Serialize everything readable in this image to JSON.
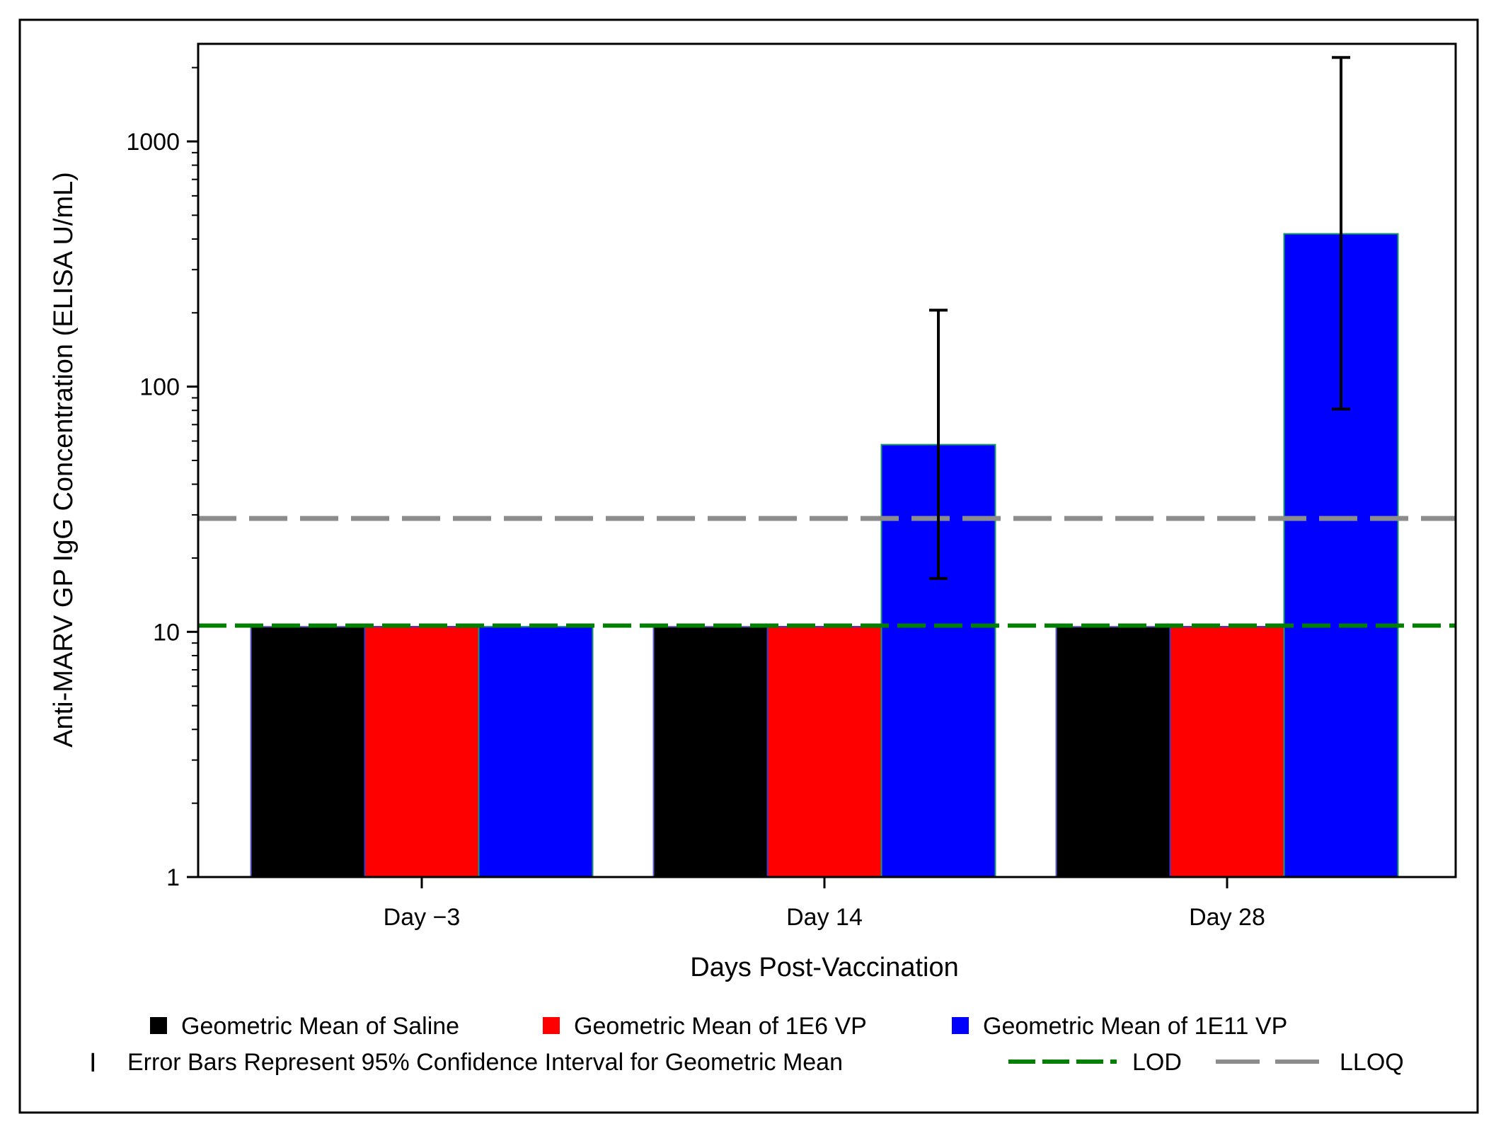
{
  "chart_data": {
    "type": "bar",
    "title": "",
    "xlabel": "Days Post-Vaccination",
    "ylabel": "Anti-MARV GP IgG Concentration (ELISA U/mL)",
    "yscale": "log",
    "ylim": [
      1,
      2500
    ],
    "yticks": [
      1,
      10,
      100,
      1000
    ],
    "ytick_labels": [
      "1",
      "10",
      "100",
      "1000"
    ],
    "categories": [
      "Day −3",
      "Day 14",
      "Day 28"
    ],
    "series": [
      {
        "name": "Geometric Mean of Saline",
        "color": "#000000",
        "values": [
          10.5,
          10.5,
          10.5
        ]
      },
      {
        "name": "Geometric Mean of 1E6 VP",
        "color": "#ff0000",
        "values": [
          10.5,
          10.5,
          10.5
        ]
      },
      {
        "name": "Geometric Mean of 1E11 VP",
        "color": "#0000ff",
        "values": [
          10.5,
          58,
          420
        ],
        "ci_lower": [
          null,
          16.5,
          81
        ],
        "ci_upper": [
          null,
          205,
          2200
        ]
      }
    ],
    "reference_lines": [
      {
        "name": "LOD",
        "value": 10.6,
        "color": "#008000",
        "style": "dashed"
      },
      {
        "name": "LLOQ",
        "value": 29,
        "color": "#8c8c8c",
        "style": "dashed"
      }
    ],
    "legend": {
      "placement": "bottom",
      "error_bar_label": "Error Bars Represent 95% Confidence Interval for Geometric Mean",
      "error_bar_symbol": "I"
    }
  }
}
